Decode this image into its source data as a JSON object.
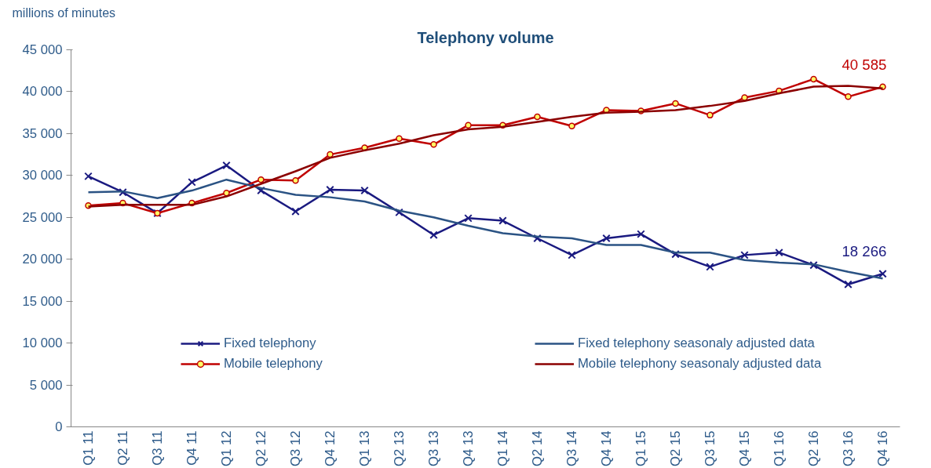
{
  "chart_data": {
    "type": "line",
    "title": "Telephony volume",
    "ylabel": "millions of minutes",
    "categories": [
      "Q1 11",
      "Q2 11",
      "Q3 11",
      "Q4 11",
      "Q1 12",
      "Q2 12",
      "Q3 12",
      "Q4 12",
      "Q1 13",
      "Q2 13",
      "Q3 13",
      "Q4 13",
      "Q1 14",
      "Q2 14",
      "Q3 14",
      "Q4 14",
      "Q1 15",
      "Q2 15",
      "Q3 15",
      "Q4 15",
      "Q1 16",
      "Q2 16",
      "Q3 16",
      "Q4 16"
    ],
    "series": [
      {
        "name": "Fixed telephony",
        "color": "#1a1a80",
        "marker": "cross",
        "values": [
          29900,
          28000,
          25500,
          29200,
          31200,
          28200,
          25700,
          28300,
          28200,
          25600,
          22900,
          24900,
          24600,
          22500,
          20500,
          22500,
          23000,
          20600,
          19100,
          20500,
          20800,
          19300,
          17000,
          18266
        ],
        "value_labels": [
          null,
          null,
          null,
          null,
          null,
          null,
          null,
          null,
          null,
          null,
          null,
          null,
          null,
          null,
          null,
          null,
          null,
          null,
          null,
          null,
          null,
          null,
          null,
          "18 266"
        ]
      },
      {
        "name": "Mobile telephony",
        "color": "#c00000",
        "marker": "circle",
        "values": [
          26400,
          26700,
          25500,
          26700,
          27900,
          29500,
          29400,
          32500,
          33300,
          34400,
          33700,
          36000,
          36000,
          37000,
          35900,
          37800,
          37700,
          38600,
          37200,
          39300,
          40100,
          41500,
          39400,
          40585
        ],
        "value_labels": [
          null,
          null,
          null,
          null,
          null,
          null,
          null,
          null,
          null,
          null,
          null,
          null,
          null,
          null,
          null,
          null,
          null,
          null,
          null,
          null,
          null,
          null,
          null,
          "40 585"
        ]
      },
      {
        "name": "Fixed telephony seasonaly adjusted data",
        "color": "#2b5384",
        "marker": "none",
        "values": [
          28000,
          28100,
          27300,
          28200,
          29500,
          28500,
          27700,
          27400,
          26900,
          25800,
          25000,
          24000,
          23100,
          22700,
          22500,
          21700,
          21700,
          20800,
          20800,
          19900,
          19600,
          19400,
          18500,
          17700
        ]
      },
      {
        "name": "Mobile telephony seasonaly adjusted data",
        "color": "#8b0000",
        "marker": "none",
        "values": [
          26300,
          26500,
          26500,
          26500,
          27500,
          29000,
          30500,
          32100,
          33000,
          33800,
          34800,
          35500,
          35800,
          36400,
          37000,
          37500,
          37600,
          37800,
          38300,
          38900,
          39800,
          40600,
          40700,
          40400
        ]
      }
    ],
    "ylim": [
      0,
      45000
    ],
    "yticks": [
      0,
      {
        "value": 5000,
        "label": "5 000"
      },
      {
        "value": 10000,
        "label": "10 000"
      },
      {
        "value": 15000,
        "label": "15 000"
      },
      {
        "value": 20000,
        "label": "20 000"
      },
      {
        "value": 25000,
        "label": "25 000"
      },
      {
        "value": 30000,
        "label": "30 000"
      },
      {
        "value": 35000,
        "label": "35 000"
      },
      {
        "value": 40000,
        "label": "40 000"
      },
      {
        "value": 45000,
        "label": "45 000"
      }
    ],
    "legend": "bottom",
    "grid": false,
    "line_style": "solid"
  }
}
